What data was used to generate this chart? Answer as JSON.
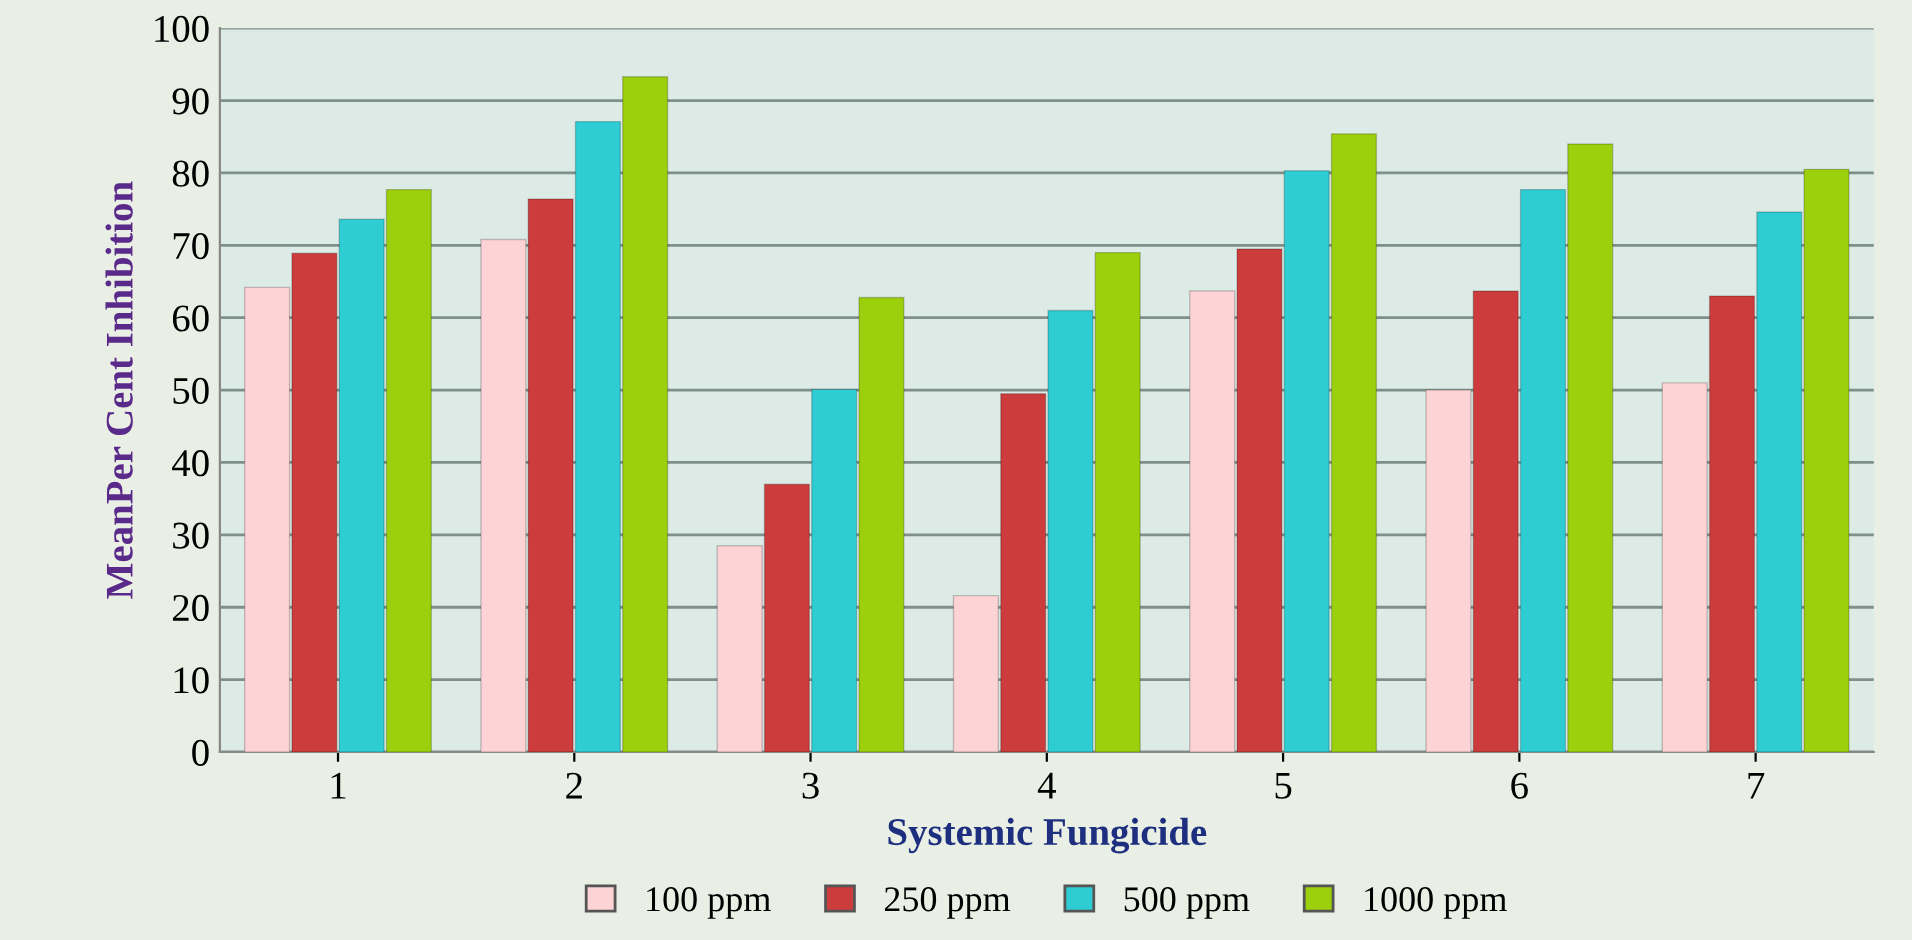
{
  "chart_data": {
    "type": "bar",
    "xlabel": "Systemic Fungicide",
    "ylabel": "MeanPer Cent Inhibition",
    "categories": [
      "1",
      "2",
      "3",
      "4",
      "5",
      "6",
      "7"
    ],
    "series": [
      {
        "name": "100 ppm",
        "color": "#fdd3d5",
        "values": [
          64.2,
          70.8,
          28.5,
          21.6,
          63.7,
          50,
          51
        ]
      },
      {
        "name": "250 ppm",
        "color": "#cc3c3c",
        "values": [
          68.9,
          76.4,
          37,
          49.5,
          69.5,
          63.7,
          63
        ]
      },
      {
        "name": "500 ppm",
        "color": "#2ecdd4",
        "values": [
          73.6,
          87.1,
          50.1,
          61,
          80.3,
          77.7,
          74.6
        ]
      },
      {
        "name": "1000 ppm",
        "color": "#9ccf0c",
        "values": [
          77.7,
          93.3,
          62.8,
          69,
          85.4,
          84,
          80.5
        ]
      }
    ],
    "ylim": [
      0,
      100
    ],
    "yticks": [
      0,
      10,
      20,
      30,
      40,
      50,
      60,
      70,
      80,
      90,
      100
    ],
    "grid": "y",
    "legend": "bottom"
  }
}
